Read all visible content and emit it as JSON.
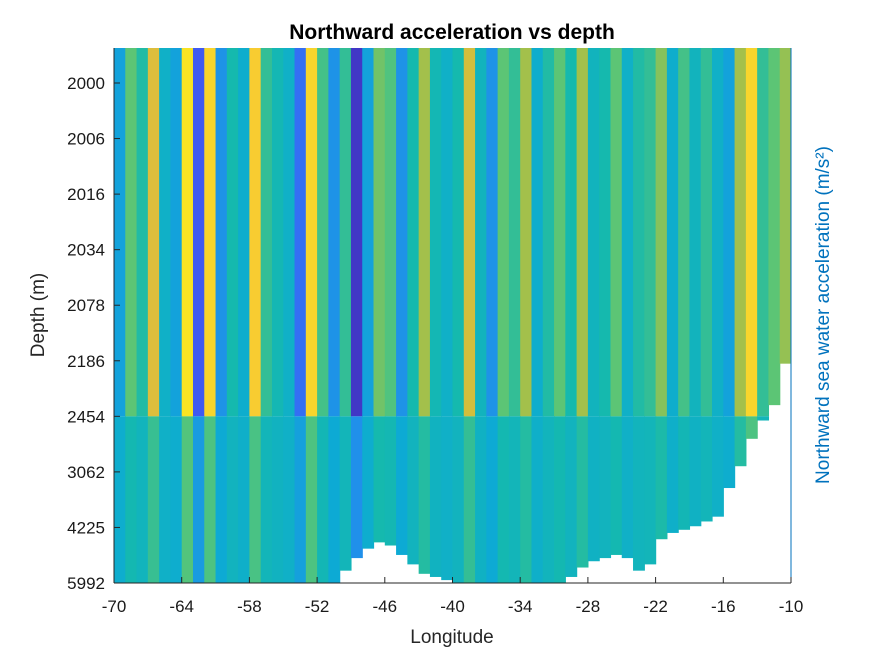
{
  "chart_data": {
    "type": "heatmap",
    "title": "Northward acceleration vs depth",
    "xlabel": "Longitude",
    "ylabel": "Depth (m)",
    "colorbar_label": "Northward sea water acceleration (m/s²)",
    "xlim": [
      -70,
      -10
    ],
    "x_ticks": [
      "-70",
      "-64",
      "-58",
      "-52",
      "-46",
      "-40",
      "-34",
      "-28",
      "-22",
      "-16",
      "-10"
    ],
    "y_ticks": [
      "2000",
      "2006",
      "2016",
      "2034",
      "2078",
      "2186",
      "2454",
      "3062",
      "4225",
      "5992"
    ],
    "colormap": "parula",
    "colors": {
      "low": "#3e26a8",
      "mid": "#15b3c9",
      "high": "#f9fb15",
      "colorbar_label_color": "#0072bd"
    },
    "columns": [
      {
        "lon": -70,
        "value": 0.35
      },
      {
        "lon": -69,
        "value": 0.62
      },
      {
        "lon": -68,
        "value": 0.52
      },
      {
        "lon": -67,
        "value": 0.82
      },
      {
        "lon": -66,
        "value": 0.42
      },
      {
        "lon": -65,
        "value": 0.35
      },
      {
        "lon": -64,
        "value": 0.95
      },
      {
        "lon": -63,
        "value": 0.15
      },
      {
        "lon": -62,
        "value": 0.92
      },
      {
        "lon": -61,
        "value": 0.3
      },
      {
        "lon": -60,
        "value": 0.5
      },
      {
        "lon": -59,
        "value": 0.4
      },
      {
        "lon": -58,
        "value": 0.9
      },
      {
        "lon": -57,
        "value": 0.55
      },
      {
        "lon": -56,
        "value": 0.48
      },
      {
        "lon": -55,
        "value": 0.42
      },
      {
        "lon": -54,
        "value": 0.2
      },
      {
        "lon": -53,
        "value": 0.92
      },
      {
        "lon": -52,
        "value": 0.58
      },
      {
        "lon": -51,
        "value": 0.3
      },
      {
        "lon": -50,
        "value": 0.55
      },
      {
        "lon": -49,
        "value": 0.05
      },
      {
        "lon": -48,
        "value": 0.35
      },
      {
        "lon": -47,
        "value": 0.65
      },
      {
        "lon": -46,
        "value": 0.6
      },
      {
        "lon": -45,
        "value": 0.3
      },
      {
        "lon": -44,
        "value": 0.5
      },
      {
        "lon": -43,
        "value": 0.72
      },
      {
        "lon": -42,
        "value": 0.48
      },
      {
        "lon": -41,
        "value": 0.42
      },
      {
        "lon": -40,
        "value": 0.5
      },
      {
        "lon": -39,
        "value": 0.8
      },
      {
        "lon": -38,
        "value": 0.45
      },
      {
        "lon": -37,
        "value": 0.3
      },
      {
        "lon": -36,
        "value": 0.62
      },
      {
        "lon": -35,
        "value": 0.55
      },
      {
        "lon": -34,
        "value": 0.72
      },
      {
        "lon": -33,
        "value": 0.4
      },
      {
        "lon": -32,
        "value": 0.52
      },
      {
        "lon": -31,
        "value": 0.62
      },
      {
        "lon": -30,
        "value": 0.5
      },
      {
        "lon": -29,
        "value": 0.72
      },
      {
        "lon": -28,
        "value": 0.45
      },
      {
        "lon": -27,
        "value": 0.5
      },
      {
        "lon": -26,
        "value": 0.62
      },
      {
        "lon": -25,
        "value": 0.42
      },
      {
        "lon": -24,
        "value": 0.52
      },
      {
        "lon": -23,
        "value": 0.55
      },
      {
        "lon": -22,
        "value": 0.68
      },
      {
        "lon": -21,
        "value": 0.4
      },
      {
        "lon": -20,
        "value": 0.58
      },
      {
        "lon": -19,
        "value": 0.45
      },
      {
        "lon": -18,
        "value": 0.55
      },
      {
        "lon": -17,
        "value": 0.42
      },
      {
        "lon": -16,
        "value": 0.35
      },
      {
        "lon": -15,
        "value": 0.72
      },
      {
        "lon": -14,
        "value": 0.92
      },
      {
        "lon": -13,
        "value": 0.55
      },
      {
        "lon": -12,
        "value": 0.62
      },
      {
        "lon": -11,
        "value": 0.7
      }
    ],
    "bottom_depth_m": [
      5992,
      5992,
      5992,
      5992,
      5992,
      5992,
      5992,
      5992,
      5992,
      5992,
      5992,
      5992,
      5992,
      5992,
      5992,
      5992,
      5992,
      5992,
      5992,
      5992,
      5600,
      5200,
      4900,
      4700,
      4800,
      5100,
      5400,
      5700,
      5800,
      5900,
      5992,
      5992,
      5992,
      5992,
      5992,
      5992,
      5992,
      5992,
      5992,
      5992,
      5800,
      5500,
      5300,
      5200,
      5100,
      5200,
      5600,
      5400,
      4600,
      4400,
      4300,
      4200,
      4100,
      4000,
      3400,
      3000,
      2700,
      2500,
      2400,
      2200
    ]
  }
}
